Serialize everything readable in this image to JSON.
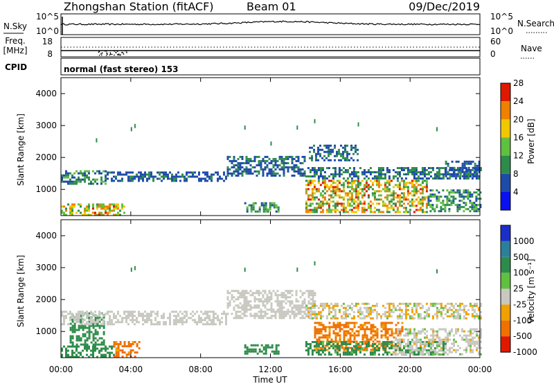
{
  "header": {
    "station": "Zhongshan Station (fitACF)",
    "beam": "Beam 01",
    "date": "09/Dec/2019"
  },
  "strips": {
    "nsky": {
      "left_label": "N.Sky",
      "left_ticks": [
        "10^5",
        "10^0"
      ],
      "right_ticks": [
        "10^5",
        "10^0"
      ],
      "right_label": "N.Search"
    },
    "freq": {
      "left_label_line1": "Freq.",
      "left_label_line2": "[MHz]",
      "left_ticks": [
        "18",
        "8"
      ],
      "right_ticks": [
        "60",
        "0"
      ],
      "right_label": "Nave"
    },
    "cpid": {
      "label": "CPID",
      "text": "normal (fast stereo) 153"
    }
  },
  "chart_data": [
    {
      "type": "heatmap",
      "name": "power",
      "ylabel": "Slant Range [km]",
      "yticks": [
        "1000",
        "2000",
        "3000",
        "4000"
      ],
      "ylim": [
        180,
        4500
      ],
      "colorbar_label": "Power [dB]",
      "colorbar_ticks": [
        "4",
        "8",
        "12",
        "16",
        "20",
        "24",
        "28"
      ],
      "colors": [
        "#0a10f0",
        "#1e4ba8",
        "#2e8c4a",
        "#60c040",
        "#f0c800",
        "#f08000",
        "#e01800"
      ],
      "color_levels": [
        0,
        4,
        8,
        12,
        16,
        20,
        24,
        30
      ],
      "regions": [
        {
          "t": [
            0.0,
            3.6
          ],
          "r": [
            220,
            560
          ],
          "v": [
            10,
            25
          ]
        },
        {
          "t": [
            0.0,
            2.5
          ],
          "r": [
            1200,
            1600
          ],
          "v": [
            5,
            14
          ]
        },
        {
          "t": [
            2.5,
            9.5
          ],
          "r": [
            1280,
            1560
          ],
          "v": [
            4,
            9
          ]
        },
        {
          "t": [
            9.5,
            14.0
          ],
          "r": [
            1400,
            2050
          ],
          "v": [
            4,
            10
          ]
        },
        {
          "t": [
            14.2,
            17.0
          ],
          "r": [
            1900,
            2400
          ],
          "v": [
            4,
            10
          ]
        },
        {
          "t": [
            14.0,
            24.0
          ],
          "r": [
            1350,
            1700
          ],
          "v": [
            4,
            12
          ]
        },
        {
          "t": [
            14.0,
            21.0
          ],
          "r": [
            300,
            1300
          ],
          "v": [
            8,
            26
          ]
        },
        {
          "t": [
            21.0,
            24.0
          ],
          "r": [
            300,
            1000
          ],
          "v": [
            5,
            15
          ]
        },
        {
          "t": [
            22.0,
            24.0
          ],
          "r": [
            1400,
            1900
          ],
          "v": [
            4,
            9
          ]
        },
        {
          "t": [
            10.5,
            12.5
          ],
          "r": [
            300,
            600
          ],
          "v": [
            6,
            14
          ]
        }
      ],
      "isolated_points": [
        [
          4.0,
          2950
        ],
        [
          4.2,
          3050
        ],
        [
          10.5,
          3000
        ],
        [
          13.5,
          3000
        ],
        [
          14.5,
          3200
        ],
        [
          17.0,
          3100
        ],
        [
          21.5,
          2950
        ],
        [
          2.0,
          2600
        ],
        [
          12.0,
          2500
        ]
      ]
    },
    {
      "type": "heatmap",
      "name": "velocity",
      "ylabel": "Slant Range [km]",
      "yticks": [
        "1000",
        "2000",
        "3000",
        "4000"
      ],
      "ylim": [
        180,
        4500
      ],
      "colorbar_label": "Velocity [m s⁻¹]",
      "colorbar_ticks": [
        "1000",
        "500",
        "100",
        "25",
        "-25",
        "-100",
        "-500",
        "-1000"
      ],
      "colors": [
        "#1a2fc8",
        "#2c7f9a",
        "#2e8c4a",
        "#60c040",
        "#c8c8c0",
        "#f0a000",
        "#f07000",
        "#e01800"
      ],
      "color_levels": [
        1500,
        1000,
        500,
        100,
        25,
        -25,
        -100,
        -500,
        -1500
      ],
      "regions": [
        {
          "t": [
            0.0,
            3.0
          ],
          "r": [
            220,
            560
          ],
          "v": [
            100,
            500
          ]
        },
        {
          "t": [
            0.5,
            2.5
          ],
          "r": [
            600,
            1600
          ],
          "v": [
            100,
            400
          ]
        },
        {
          "t": [
            3.0,
            4.5
          ],
          "r": [
            220,
            700
          ],
          "v": [
            -300,
            -60
          ]
        },
        {
          "t": [
            0.0,
            9.5
          ],
          "r": [
            1250,
            1650
          ],
          "v": [
            -25,
            25
          ]
        },
        {
          "t": [
            9.5,
            14.5
          ],
          "r": [
            1400,
            2300
          ],
          "v": [
            -25,
            25
          ]
        },
        {
          "t": [
            14.0,
            24.0
          ],
          "r": [
            1400,
            1900
          ],
          "v": [
            -60,
            40
          ]
        },
        {
          "t": [
            14.5,
            19.5
          ],
          "r": [
            400,
            1300
          ],
          "v": [
            -400,
            -40
          ]
        },
        {
          "t": [
            14.0,
            22.0
          ],
          "r": [
            300,
            700
          ],
          "v": [
            60,
            400
          ]
        },
        {
          "t": [
            19.0,
            24.0
          ],
          "r": [
            300,
            1100
          ],
          "v": [
            -30,
            30
          ]
        },
        {
          "t": [
            10.5,
            12.5
          ],
          "r": [
            300,
            600
          ],
          "v": [
            100,
            300
          ]
        }
      ],
      "isolated_points": [
        [
          4.0,
          3000
        ],
        [
          4.2,
          3050
        ],
        [
          10.5,
          3000
        ],
        [
          13.5,
          3000
        ],
        [
          14.5,
          3200
        ],
        [
          21.5,
          2950
        ]
      ]
    }
  ],
  "time_axis": {
    "ticks": [
      "00:00",
      "04:00",
      "08:00",
      "12:00",
      "16:00",
      "20:00",
      "00:00"
    ],
    "xlabel": "Time UT",
    "range_hours": [
      0,
      24
    ]
  }
}
